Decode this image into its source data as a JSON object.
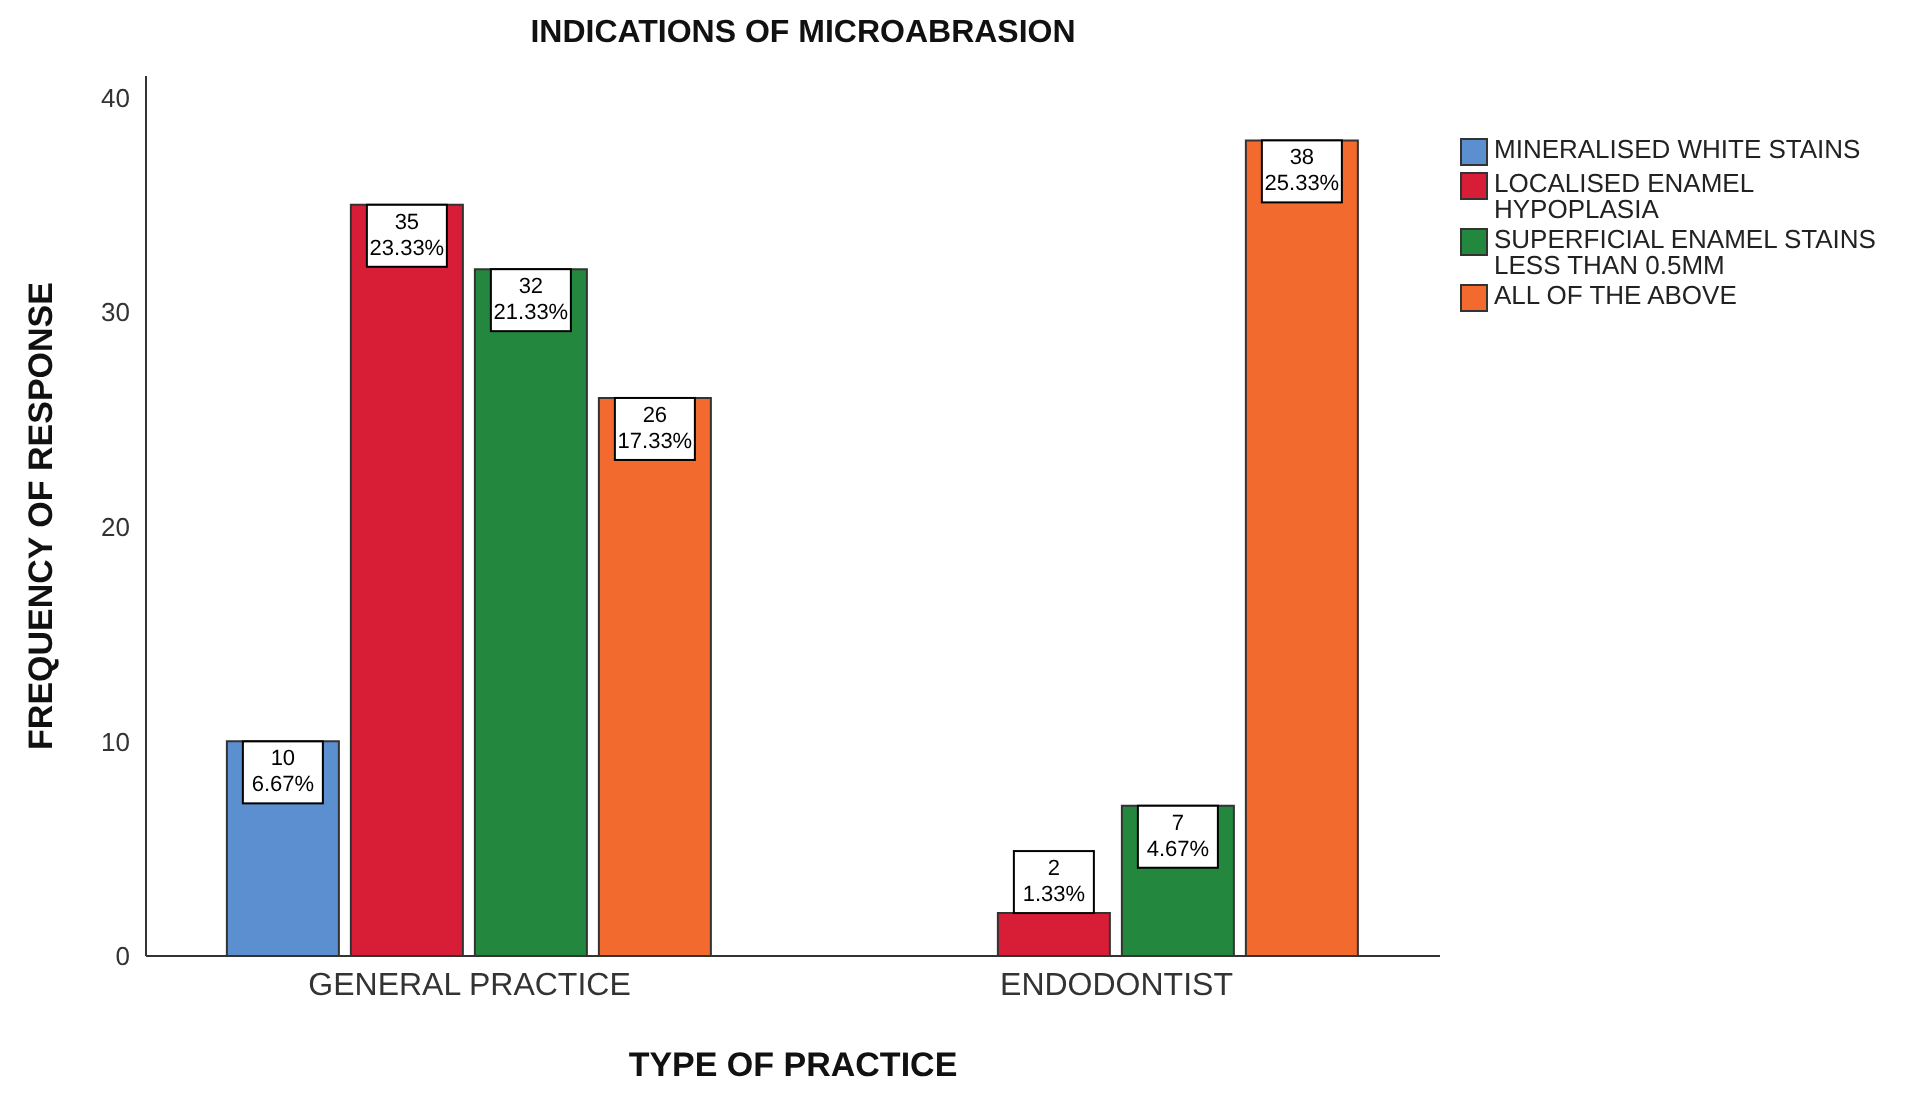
{
  "chart_data": {
    "type": "bar",
    "title": "INDICATIONS OF MICROABRASION",
    "xlabel": "TYPE OF PRACTICE",
    "ylabel": "FREQUENCY OF RESPONSE",
    "categories": [
      "GENERAL PRACTICE",
      "ENDODONTIST"
    ],
    "series": [
      {
        "name": "MINERALISED WHITE STAINS",
        "color": "#5b8fd0",
        "values": [
          10,
          null
        ],
        "value_labels": [
          "10\n6.67%",
          null
        ]
      },
      {
        "name": "LOCALISED ENAMEL HYPOPLASIA",
        "color": "#d81e36",
        "values": [
          35,
          2
        ],
        "value_labels": [
          "35\n23.33%",
          "2\n1.33%"
        ]
      },
      {
        "name": "SUPERFICIAL ENAMEL STAINS LESS THAN 0.5MM",
        "color": "#23883e",
        "values": [
          32,
          7
        ],
        "value_labels": [
          "32\n21.33%",
          "7\n4.67%"
        ]
      },
      {
        "name": "ALL OF THE ABOVE",
        "color": "#f26a2e",
        "values": [
          26,
          38
        ],
        "value_labels": [
          "26\n17.33%",
          "38\n25.33%"
        ]
      }
    ],
    "ylim": [
      0,
      41
    ],
    "yticks": [
      0,
      10,
      20,
      30,
      40
    ],
    "grid": false,
    "legend": "top right"
  }
}
